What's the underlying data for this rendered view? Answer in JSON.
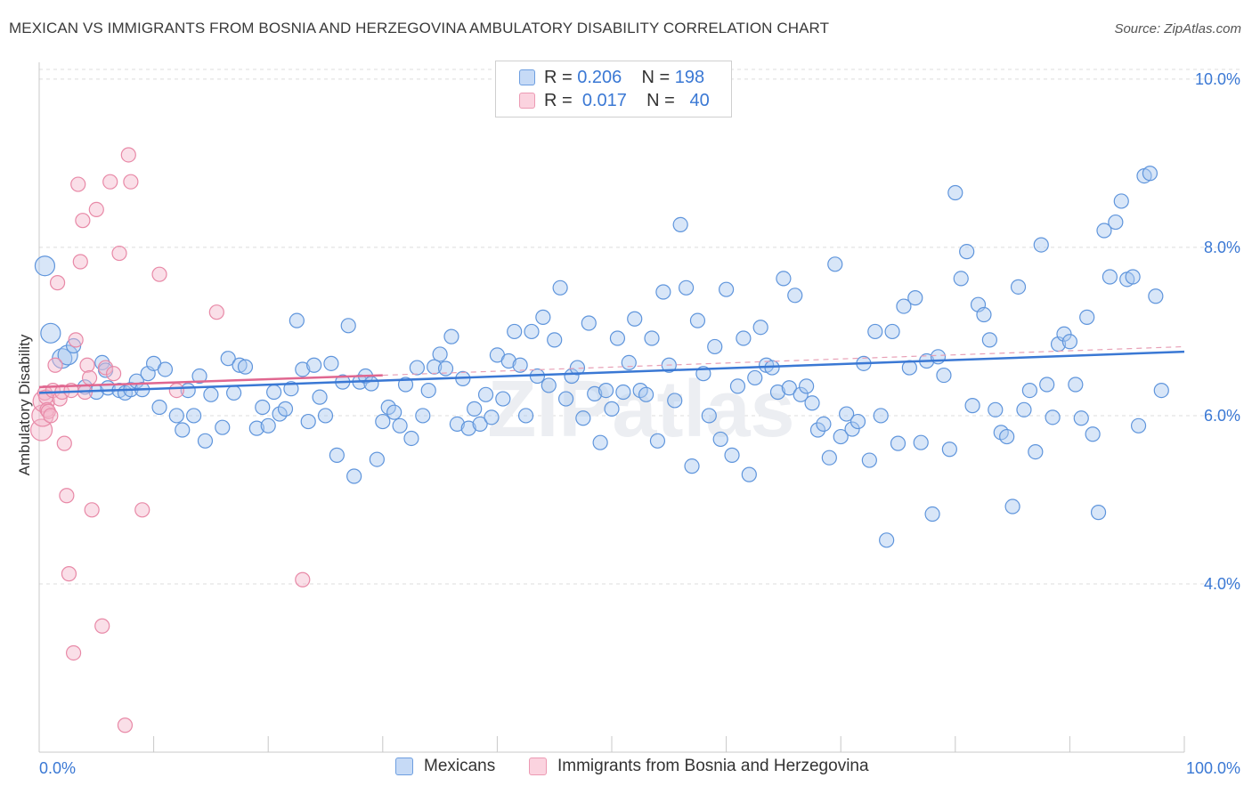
{
  "header": {
    "title": "MEXICAN VS IMMIGRANTS FROM BOSNIA AND HERZEGOVINA AMBULATORY DISABILITY CORRELATION CHART",
    "source": "Source: ZipAtlas.com"
  },
  "watermark": "ZIPatlas",
  "legend": {
    "rows": [
      {
        "r_label": "R =",
        "r_value": "0.206",
        "n_label": "N =",
        "n_value": "198",
        "color": "#a9c7f0"
      },
      {
        "r_label": "R =",
        "r_value": "0.017",
        "n_label": "N =",
        "n_value": "40",
        "color": "#f5b8cb"
      }
    ]
  },
  "bottom_legend": {
    "items": [
      {
        "label": "Mexicans",
        "color": "#a9c7f0"
      },
      {
        "label": "Immigrants from Bosnia and Herzegovina",
        "color": "#f5b8cb"
      }
    ]
  },
  "chart_data": {
    "type": "scatter",
    "title": "MEXICAN VS IMMIGRANTS FROM BOSNIA AND HERZEGOVINA AMBULATORY DISABILITY CORRELATION CHART",
    "xlabel": "",
    "ylabel": "Ambulatory Disability",
    "xlim": [
      0,
      100
    ],
    "ylim": [
      2.0,
      10.2
    ],
    "x_tick_labels": [
      "0.0%",
      "100.0%"
    ],
    "y_ticks": [
      4.0,
      6.0,
      8.0,
      10.0
    ],
    "y_tick_labels": [
      "4.0%",
      "6.0%",
      "8.0%",
      "10.0%"
    ],
    "grid": true,
    "legend_position": "top-center",
    "colors": {
      "mexicans": "#3a78d4",
      "bosnia": "#e06790",
      "axis_text": "#3a78d4"
    },
    "series": [
      {
        "name": "Mexicans",
        "color": "#3a78d4",
        "trend": {
          "x": [
            0,
            100
          ],
          "y": [
            6.27,
            6.76
          ]
        },
        "points": [
          [
            0.5,
            7.78
          ],
          [
            1,
            6.98
          ],
          [
            2,
            6.68
          ],
          [
            2.5,
            6.72
          ],
          [
            3,
            6.83
          ],
          [
            4,
            6.34
          ],
          [
            5,
            6.28
          ],
          [
            5.5,
            6.63
          ],
          [
            5.8,
            6.54
          ],
          [
            6,
            6.33
          ],
          [
            7,
            6.3
          ],
          [
            7.5,
            6.27
          ],
          [
            8,
            6.31
          ],
          [
            8.5,
            6.41
          ],
          [
            9,
            6.31
          ],
          [
            9.5,
            6.5
          ],
          [
            10,
            6.62
          ],
          [
            10.5,
            6.1
          ],
          [
            11,
            6.55
          ],
          [
            12,
            6.0
          ],
          [
            12.5,
            5.83
          ],
          [
            13,
            6.3
          ],
          [
            13.5,
            6.0
          ],
          [
            14,
            6.47
          ],
          [
            14.5,
            5.7
          ],
          [
            15,
            6.25
          ],
          [
            16,
            5.86
          ],
          [
            16.5,
            6.68
          ],
          [
            17,
            6.27
          ],
          [
            17.5,
            6.6
          ],
          [
            18,
            6.58
          ],
          [
            19,
            5.85
          ],
          [
            19.5,
            6.1
          ],
          [
            20,
            5.88
          ],
          [
            20.5,
            6.28
          ],
          [
            21,
            6.02
          ],
          [
            21.5,
            6.08
          ],
          [
            22,
            6.32
          ],
          [
            22.5,
            7.13
          ],
          [
            23,
            6.55
          ],
          [
            23.5,
            5.93
          ],
          [
            24,
            6.6
          ],
          [
            24.5,
            6.22
          ],
          [
            25,
            6.0
          ],
          [
            25.5,
            6.62
          ],
          [
            26,
            5.53
          ],
          [
            26.5,
            6.4
          ],
          [
            27,
            7.07
          ],
          [
            27.5,
            5.28
          ],
          [
            28,
            6.4
          ],
          [
            28.5,
            6.47
          ],
          [
            29,
            6.38
          ],
          [
            29.5,
            5.48
          ],
          [
            30,
            5.93
          ],
          [
            30.5,
            6.1
          ],
          [
            31,
            6.04
          ],
          [
            31.5,
            5.88
          ],
          [
            32,
            6.37
          ],
          [
            32.5,
            5.73
          ],
          [
            33,
            6.57
          ],
          [
            33.5,
            6.0
          ],
          [
            34,
            6.3
          ],
          [
            34.5,
            6.58
          ],
          [
            35,
            6.73
          ],
          [
            35.5,
            6.56
          ],
          [
            36,
            6.94
          ],
          [
            36.5,
            5.9
          ],
          [
            37,
            6.44
          ],
          [
            37.5,
            5.85
          ],
          [
            38,
            6.08
          ],
          [
            38.5,
            5.9
          ],
          [
            39,
            6.25
          ],
          [
            39.5,
            5.98
          ],
          [
            40,
            6.72
          ],
          [
            40.5,
            6.2
          ],
          [
            41,
            6.65
          ],
          [
            41.5,
            7.0
          ],
          [
            42,
            6.6
          ],
          [
            42.5,
            6.0
          ],
          [
            43,
            7.0
          ],
          [
            43.5,
            6.47
          ],
          [
            44,
            7.17
          ],
          [
            44.5,
            6.36
          ],
          [
            45,
            6.9
          ],
          [
            45.5,
            7.52
          ],
          [
            46,
            6.2
          ],
          [
            46.5,
            6.47
          ],
          [
            47,
            6.57
          ],
          [
            47.5,
            5.97
          ],
          [
            48,
            7.1
          ],
          [
            48.5,
            6.26
          ],
          [
            49,
            5.68
          ],
          [
            49.5,
            6.3
          ],
          [
            50,
            6.08
          ],
          [
            50.5,
            6.92
          ],
          [
            51,
            6.28
          ],
          [
            51.5,
            6.63
          ],
          [
            52,
            7.15
          ],
          [
            52.5,
            6.3
          ],
          [
            53,
            6.25
          ],
          [
            53.5,
            6.92
          ],
          [
            54,
            5.7
          ],
          [
            54.5,
            7.47
          ],
          [
            55,
            6.6
          ],
          [
            55.5,
            6.18
          ],
          [
            56,
            8.27
          ],
          [
            56.5,
            7.52
          ],
          [
            57,
            5.4
          ],
          [
            57.5,
            7.13
          ],
          [
            58,
            6.5
          ],
          [
            58.5,
            6.0
          ],
          [
            59,
            6.82
          ],
          [
            59.5,
            5.72
          ],
          [
            60,
            7.5
          ],
          [
            60.5,
            5.53
          ],
          [
            61,
            6.35
          ],
          [
            61.5,
            6.92
          ],
          [
            62,
            5.3
          ],
          [
            62.5,
            6.45
          ],
          [
            63,
            7.05
          ],
          [
            63.5,
            6.6
          ],
          [
            64,
            6.57
          ],
          [
            64.5,
            6.28
          ],
          [
            65,
            7.63
          ],
          [
            65.5,
            6.33
          ],
          [
            66,
            7.43
          ],
          [
            66.5,
            6.25
          ],
          [
            67,
            6.35
          ],
          [
            67.5,
            6.15
          ],
          [
            68,
            5.83
          ],
          [
            68.5,
            5.9
          ],
          [
            69,
            5.5
          ],
          [
            69.5,
            7.8
          ],
          [
            70,
            5.75
          ],
          [
            70.5,
            6.02
          ],
          [
            71,
            5.84
          ],
          [
            71.5,
            5.93
          ],
          [
            72,
            6.62
          ],
          [
            72.5,
            5.47
          ],
          [
            73,
            7.0
          ],
          [
            73.5,
            6.0
          ],
          [
            74,
            4.52
          ],
          [
            74.5,
            7.0
          ],
          [
            75,
            5.67
          ],
          [
            75.5,
            7.3
          ],
          [
            76,
            6.57
          ],
          [
            76.5,
            7.4
          ],
          [
            77,
            5.68
          ],
          [
            77.5,
            6.65
          ],
          [
            78,
            4.83
          ],
          [
            78.5,
            6.7
          ],
          [
            79,
            6.48
          ],
          [
            79.5,
            5.6
          ],
          [
            80,
            8.65
          ],
          [
            80.5,
            7.63
          ],
          [
            81,
            7.95
          ],
          [
            81.5,
            6.12
          ],
          [
            82,
            7.32
          ],
          [
            82.5,
            7.2
          ],
          [
            83,
            6.9
          ],
          [
            83.5,
            6.07
          ],
          [
            84,
            5.8
          ],
          [
            84.5,
            5.75
          ],
          [
            85,
            4.92
          ],
          [
            85.5,
            7.53
          ],
          [
            86,
            6.07
          ],
          [
            86.5,
            6.3
          ],
          [
            87,
            5.57
          ],
          [
            87.5,
            8.03
          ],
          [
            88,
            6.37
          ],
          [
            88.5,
            5.98
          ],
          [
            89,
            6.85
          ],
          [
            89.5,
            6.97
          ],
          [
            90,
            6.88
          ],
          [
            90.5,
            6.37
          ],
          [
            91,
            5.97
          ],
          [
            91.5,
            7.17
          ],
          [
            92,
            5.78
          ],
          [
            92.5,
            4.85
          ],
          [
            93,
            8.2
          ],
          [
            93.5,
            7.65
          ],
          [
            94,
            8.3
          ],
          [
            94.5,
            8.55
          ],
          [
            95,
            7.62
          ],
          [
            95.5,
            7.65
          ],
          [
            96,
            5.88
          ],
          [
            96.5,
            8.85
          ],
          [
            97,
            8.88
          ],
          [
            97.5,
            7.42
          ],
          [
            98,
            6.3
          ]
        ]
      },
      {
        "name": "Immigrants from Bosnia and Herzegovina",
        "color": "#e06790",
        "trend": {
          "x": [
            0,
            30
          ],
          "y": [
            6.34,
            6.48
          ]
        },
        "points": [
          [
            0.2,
            5.83
          ],
          [
            0.3,
            6.0
          ],
          [
            0.4,
            6.17
          ],
          [
            0.5,
            6.27
          ],
          [
            0.6,
            6.22
          ],
          [
            0.7,
            6.07
          ],
          [
            0.8,
            6.05
          ],
          [
            1.0,
            6.0
          ],
          [
            1.2,
            6.3
          ],
          [
            1.4,
            6.6
          ],
          [
            1.6,
            7.58
          ],
          [
            1.8,
            6.2
          ],
          [
            2.0,
            6.28
          ],
          [
            2.2,
            5.67
          ],
          [
            2.4,
            5.05
          ],
          [
            2.6,
            4.12
          ],
          [
            2.8,
            6.3
          ],
          [
            3.0,
            3.18
          ],
          [
            3.2,
            6.9
          ],
          [
            3.4,
            8.75
          ],
          [
            3.6,
            7.83
          ],
          [
            3.8,
            8.32
          ],
          [
            4.0,
            6.28
          ],
          [
            4.2,
            6.6
          ],
          [
            4.4,
            6.45
          ],
          [
            4.6,
            4.88
          ],
          [
            5.0,
            8.45
          ],
          [
            5.5,
            3.5
          ],
          [
            5.8,
            6.57
          ],
          [
            6.2,
            8.78
          ],
          [
            6.5,
            6.5
          ],
          [
            7.0,
            7.93
          ],
          [
            7.5,
            2.32
          ],
          [
            7.8,
            9.1
          ],
          [
            8.0,
            8.78
          ],
          [
            9.0,
            4.88
          ],
          [
            10.5,
            7.68
          ],
          [
            12.0,
            6.3
          ],
          [
            15.5,
            7.23
          ],
          [
            23.0,
            4.05
          ]
        ]
      }
    ]
  }
}
